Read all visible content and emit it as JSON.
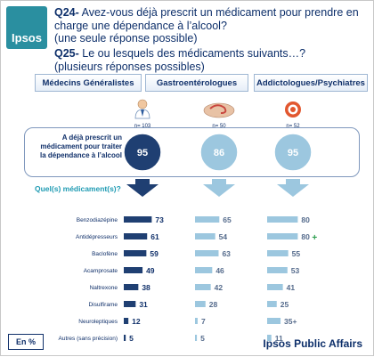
{
  "logo": {
    "text": "Ipsos"
  },
  "q24": {
    "code": "Q24-",
    "text": "Avez-vous déjà prescrit un médicament pour prendre en charge une dépendance à l’alcool?",
    "note": "(une seule réponse possible)"
  },
  "q25": {
    "code": "Q25-",
    "text": "Le ou lesquels des médicaments suivants…?",
    "note": "(plusieurs réponses possibles)"
  },
  "groups": [
    {
      "label": "Médecins Généralistes",
      "n": "n= 103",
      "value": 95
    },
    {
      "label": "Gastroentérologues",
      "n": "n= 50",
      "value": 86
    },
    {
      "label": "Addictologues/Psychiatres",
      "n": "n= 52",
      "value": 95
    }
  ],
  "prescribed_label": "A déjà prescrit un médicament pour traiter la dépendance à l’alcool",
  "which_label": "Quel(s) médicament(s)?",
  "unit_label": "En %",
  "footer": "Ipsos Public Affairs",
  "colors": {
    "primary": "#1f3f72",
    "light": "#9cc7df",
    "accent": "#1f9bb3",
    "plus": "#2e9e4f"
  },
  "chart_data": {
    "type": "bar",
    "orientation": "horizontal",
    "unit": "%",
    "categories": [
      "Benzodiazépine",
      "Antidépresseurs",
      "Baclofène",
      "Acamprosate",
      "Naltrexone",
      "Disulfirame",
      "Neuroleptiques",
      "Autres (sans précision)"
    ],
    "series": [
      {
        "name": "Médecins Généralistes",
        "values": [
          73,
          61,
          59,
          49,
          38,
          31,
          12,
          5
        ],
        "labels": [
          "73",
          "61",
          "59",
          "49",
          "38",
          "31",
          "12",
          "5"
        ]
      },
      {
        "name": "Gastroentérologues",
        "values": [
          65,
          54,
          63,
          46,
          42,
          28,
          7,
          5
        ],
        "labels": [
          "65",
          "54",
          "63",
          "46",
          "42",
          "28",
          "7",
          "5"
        ]
      },
      {
        "name": "Addictologues/Psychiatres",
        "values": [
          80,
          80,
          55,
          53,
          41,
          25,
          35,
          11
        ],
        "labels": [
          "80",
          "80",
          "55",
          "53",
          "41",
          "25",
          "35+",
          "11"
        ],
        "marks": [
          "",
          "+",
          "",
          "",
          "",
          "",
          "",
          ""
        ]
      }
    ]
  }
}
